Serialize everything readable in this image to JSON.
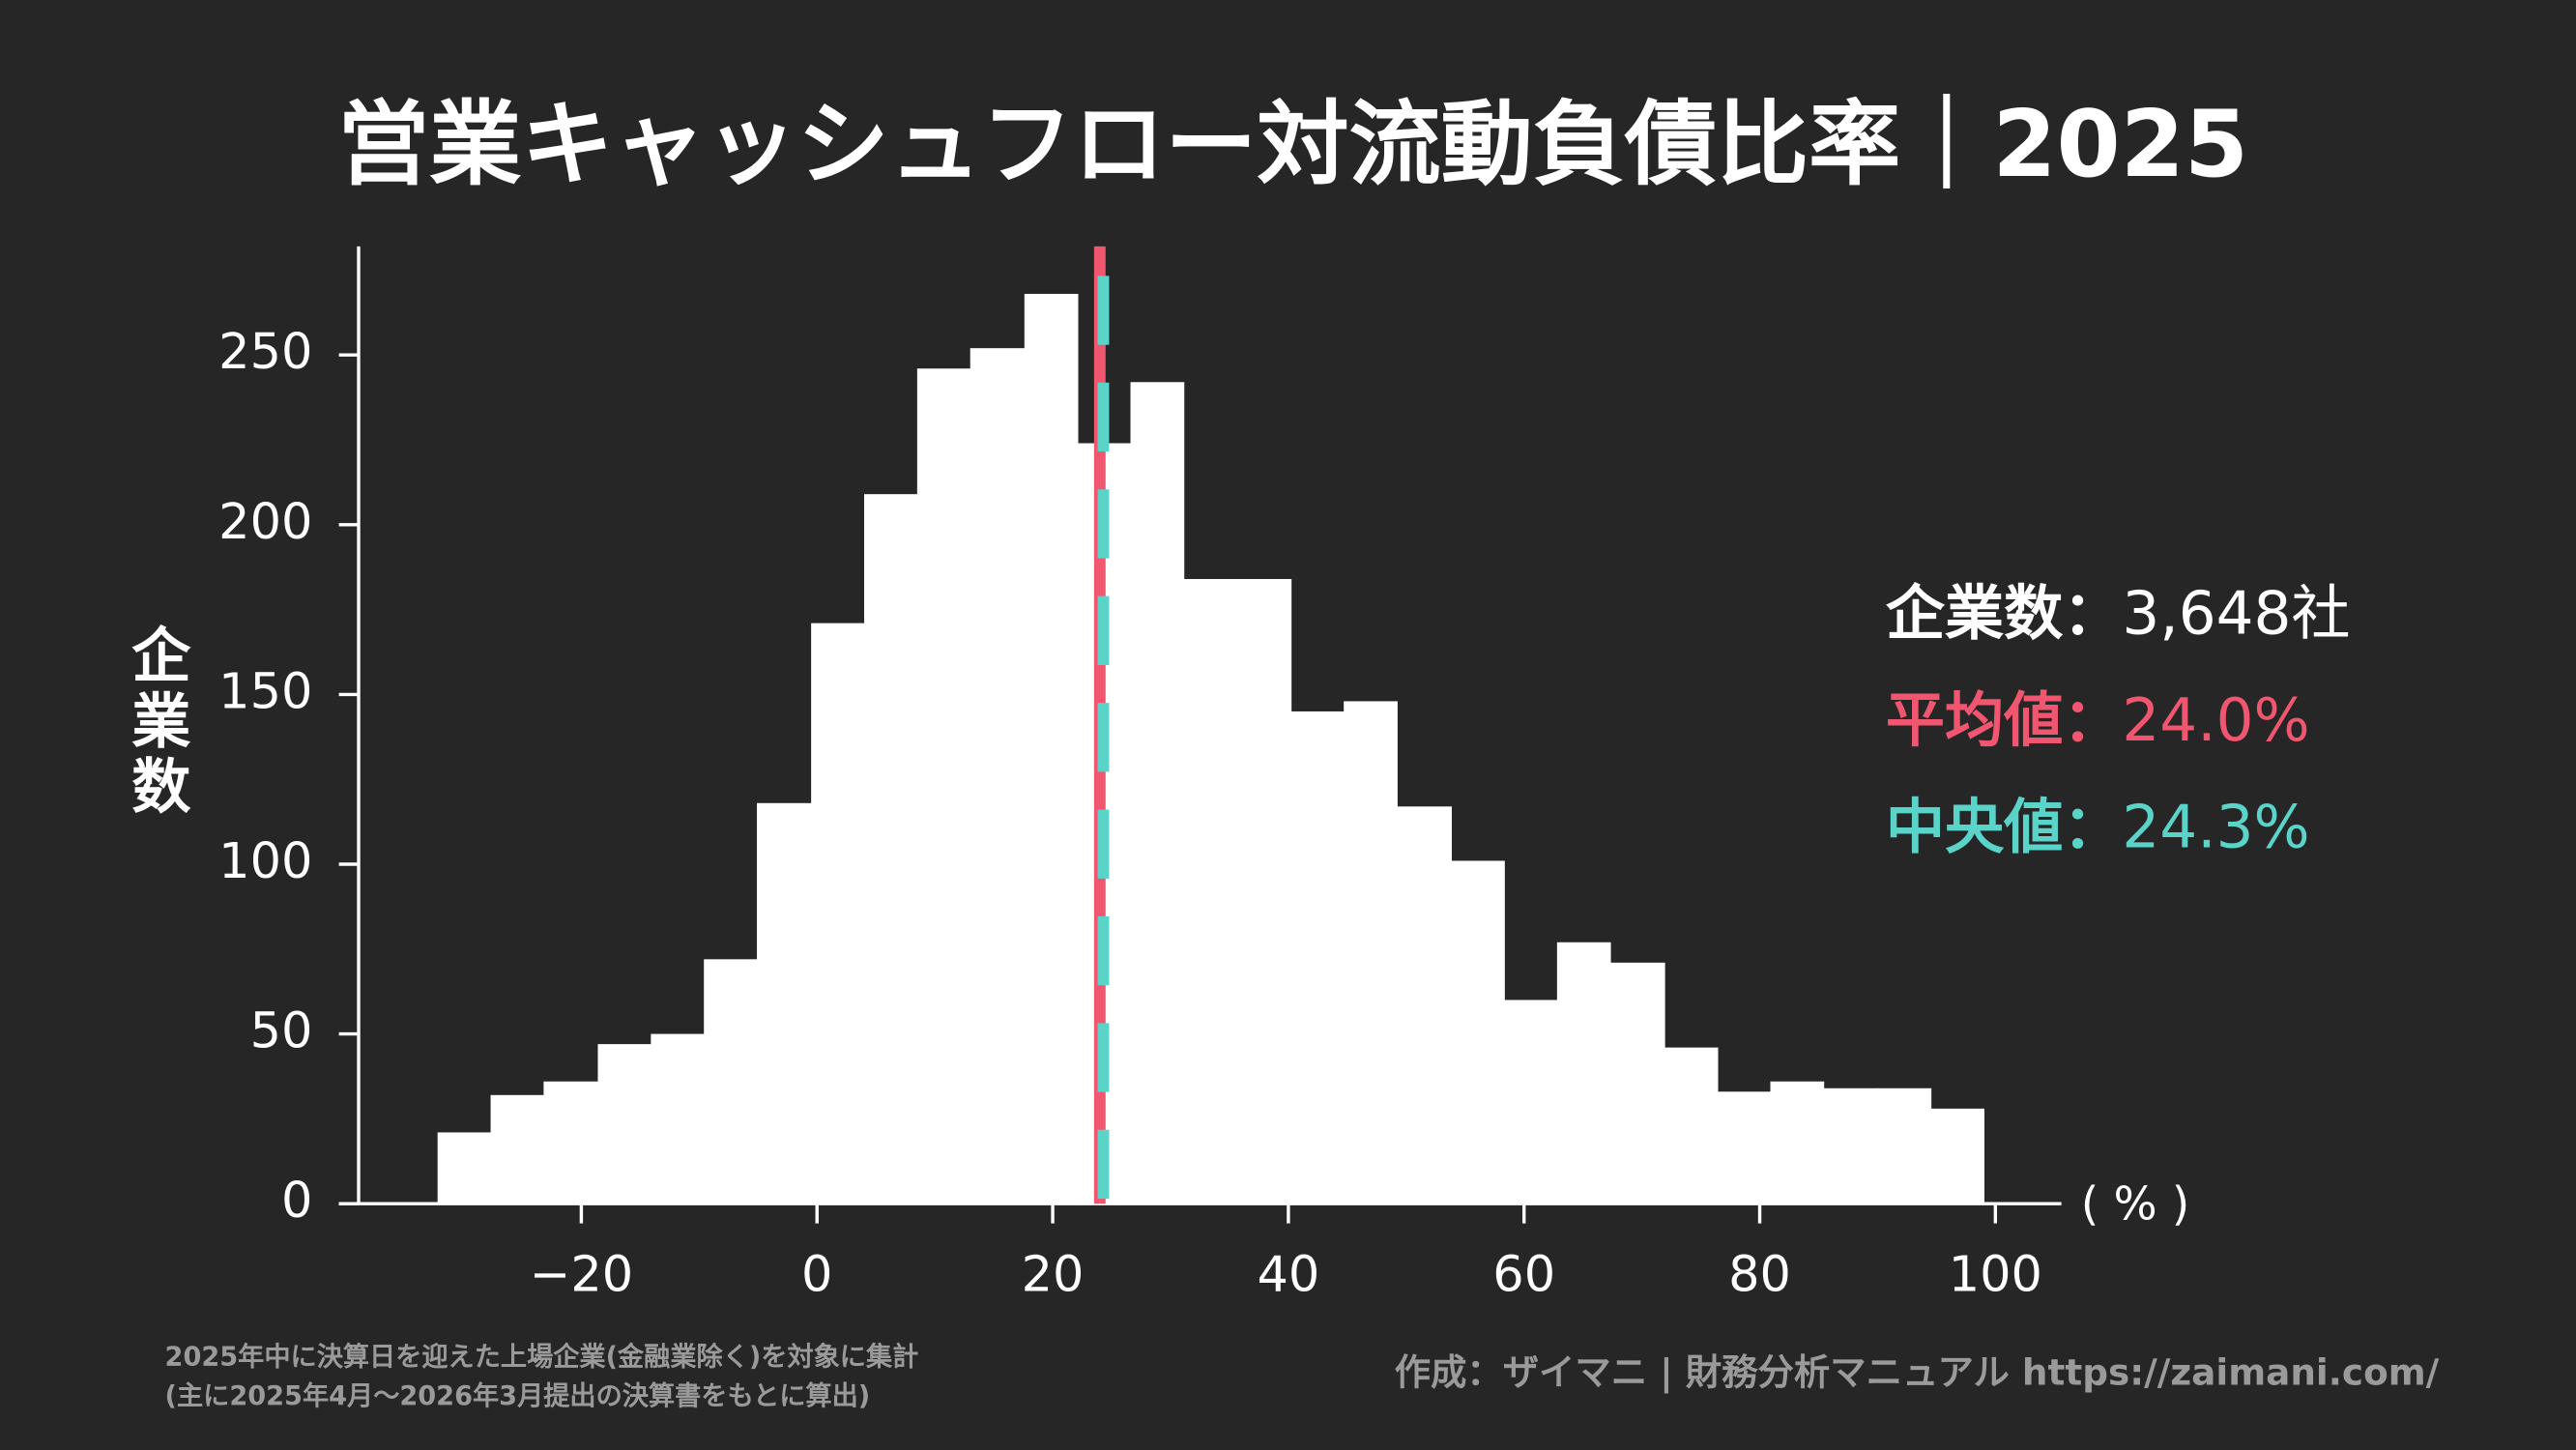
{
  "chart_data": {
    "type": "histogram",
    "title": "営業キャッシュフロー対流動負債比率｜2025",
    "y_label": "企業数",
    "x_unit": "( % )",
    "bins": [
      -32.2,
      -27.7,
      -23.2,
      -18.6,
      -14.1,
      -9.6,
      -5.1,
      -0.5,
      4.0,
      8.5,
      13.0,
      17.6,
      22.1,
      26.6,
      31.1,
      35.7,
      40.2,
      44.7,
      49.2,
      53.8,
      58.3,
      62.8,
      67.3,
      71.9,
      76.4,
      80.9,
      85.4,
      90.0,
      94.5,
      99.0
    ],
    "values": [
      21,
      32,
      36,
      47,
      50,
      72,
      118,
      171,
      209,
      246,
      252,
      268,
      224,
      242,
      184,
      184,
      145,
      148,
      117,
      101,
      60,
      77,
      71,
      46,
      33,
      36,
      34,
      34,
      28
    ],
    "color": "#ffffff",
    "xlim": [
      -38.9,
      105.6
    ],
    "xticks": [
      {
        "value": -20,
        "label": "−20"
      },
      0,
      20,
      40,
      60,
      80,
      100
    ],
    "ylim": [
      0,
      282
    ],
    "yticks": [
      0,
      50,
      100,
      150,
      200,
      250
    ],
    "summary": {
      "separator": "：",
      "count": {
        "name": "企業数",
        "value": 3648,
        "value_label": "3,648社",
        "color": "#ffffff"
      },
      "mean": {
        "name": "平均値",
        "value": 24.0,
        "value_label": "24.0%",
        "color": "#f0566f"
      },
      "median": {
        "name": "中央値",
        "value": 24.3,
        "value_label": "24.3%",
        "color": "#5ad3c8"
      }
    },
    "notes": [
      "2025年中に決算日を迎えた上場企業(金融業除く)を対象に集計",
      "(主に2025年4月〜2026年3月提出の決算書をもとに算出)"
    ],
    "credit": "作成：ザイマニ | 財務分析マニュアル https://zaimani.com/"
  }
}
